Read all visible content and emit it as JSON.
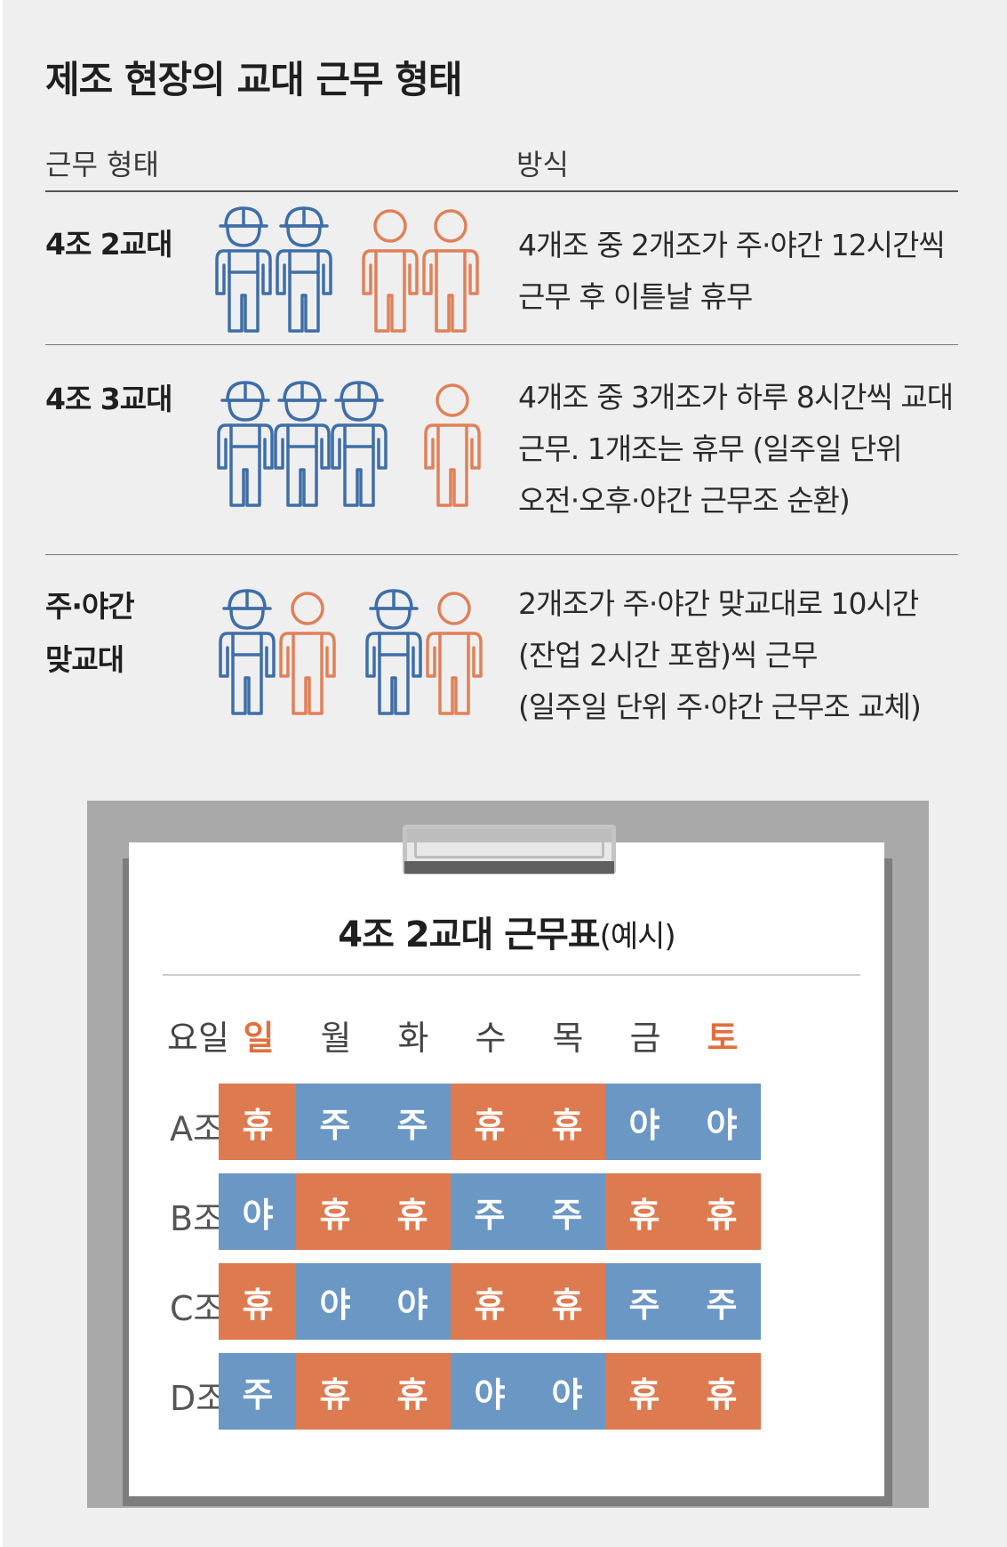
{
  "title": "제조 현장의 교대 근무 형태",
  "columns": {
    "type": "근무 형태",
    "method": "방식"
  },
  "rows": [
    {
      "label": "4조 2교대",
      "desc": [
        "4개조 중 2개조가 주·야간 12시간씩",
        "근무 후 이튿날 휴무"
      ]
    },
    {
      "label": "4조 3교대",
      "desc": [
        "4개조 중 3개조가 하루 8시간씩 교대",
        "근무. 1개조는 휴무 (일주일 단위",
        "오전·오후·야간 근무조 순환)"
      ]
    },
    {
      "label_lines": [
        "주·야간",
        "맞교대"
      ],
      "desc": [
        "2개조가 주·야간 맞교대로 10시간",
        "(잔업 2시간 포함)씩 근무",
        "(일주일 단위 주·야간 근무조 교체)"
      ]
    }
  ],
  "schedule": {
    "title_bold": "4조 2교대 근무표",
    "title_sub": "(예시)",
    "day_label": "요일",
    "days": [
      "일",
      "월",
      "화",
      "수",
      "목",
      "금",
      "토"
    ],
    "red_days": [
      0,
      6
    ],
    "teams": [
      {
        "name": "A조",
        "cells": [
          "휴",
          "주",
          "주",
          "휴",
          "휴",
          "야",
          "야"
        ]
      },
      {
        "name": "B조",
        "cells": [
          "야",
          "휴",
          "휴",
          "주",
          "주",
          "휴",
          "휴"
        ]
      },
      {
        "name": "C조",
        "cells": [
          "휴",
          "야",
          "야",
          "휴",
          "휴",
          "주",
          "주"
        ]
      },
      {
        "name": "D조",
        "cells": [
          "주",
          "휴",
          "휴",
          "야",
          "야",
          "휴",
          "휴"
        ]
      }
    ]
  },
  "colors": {
    "blue": "#6b97c5",
    "orange": "#de7a4f",
    "icon_blue": "#3e6ea8",
    "icon_orange": "#e08058"
  },
  "icons": [
    "worker-hardhat-icon",
    "person-icon"
  ]
}
